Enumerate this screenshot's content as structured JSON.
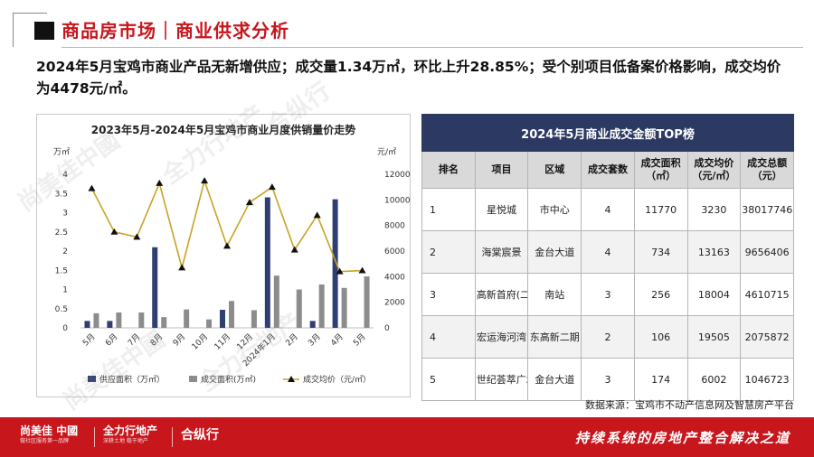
{
  "header": {
    "section_title": "商品房市场｜商业供求分析",
    "summary": "2024年5月宝鸡市商业产品无新增供应；成交量1.34万㎡，环比上升28.85%；受个别项目低备案价格影响，成交均价为4478元/㎡。"
  },
  "chart_data": {
    "type": "bar+line",
    "title": "2023年5月-2024年5月宝鸡市商业月度供销量价走势",
    "y_left_unit": "万㎡",
    "y_right_unit": "元/㎡",
    "categories": [
      "5月",
      "6月",
      "7月",
      "8月",
      "9月",
      "10月",
      "11月",
      "12月",
      "2024年1月",
      "2月",
      "3月",
      "4月",
      "5月"
    ],
    "y_left_lim": [
      0,
      4
    ],
    "y_left_ticks": [
      "0",
      "0.5",
      "1",
      "1.5",
      "2",
      "2.5",
      "3",
      "3.5",
      "4"
    ],
    "y_right_lim": [
      0,
      12000
    ],
    "y_right_ticks": [
      "0",
      "2000",
      "4000",
      "6000",
      "8000",
      "10000",
      "12000"
    ],
    "series": [
      {
        "name": "供应面积（万㎡）",
        "type": "bar",
        "color": "#2f3f73",
        "values": [
          0.18,
          0.18,
          0,
          2.1,
          0,
          0,
          0.47,
          0,
          3.4,
          0,
          0.18,
          3.35,
          0
        ]
      },
      {
        "name": "成交面积(万㎡)",
        "type": "bar",
        "color": "#8c8c8c",
        "values": [
          0.38,
          0.4,
          0.4,
          0.28,
          0.48,
          0.22,
          0.7,
          0.46,
          1.36,
          1.0,
          1.13,
          1.04,
          1.34
        ]
      },
      {
        "name": "成交均价（元/㎡）",
        "type": "line",
        "color": "#c9a227",
        "values": [
          10900,
          7500,
          7100,
          11300,
          4700,
          11500,
          6400,
          9800,
          11000,
          6100,
          8800,
          4400,
          4478
        ]
      }
    ],
    "legend_position": "bottom"
  },
  "table": {
    "title": "2024年5月商业成交金额TOP榜",
    "headers": [
      "排名",
      "项目",
      "区域",
      "成交套数",
      "成交面积（㎡）",
      "成交均价（元/㎡）",
      "成交总额（元）"
    ],
    "rows": [
      [
        "1",
        "星悦城",
        "市中心",
        "4",
        "11770",
        "3230",
        "38017746"
      ],
      [
        "2",
        "海棠宸景",
        "金台大道",
        "4",
        "734",
        "13163",
        "9656406"
      ],
      [
        "3",
        "高新首府(二期)",
        "南站",
        "3",
        "256",
        "18004",
        "4610715"
      ],
      [
        "4",
        "宏运海河湾",
        "东高新二期",
        "2",
        "106",
        "19505",
        "2075872"
      ],
      [
        "5",
        "世纪荟萃广场二期",
        "金台大道",
        "3",
        "174",
        "6002",
        "1046723"
      ]
    ]
  },
  "source": "数据来源：宝鸡市不动产信息网及智慧房产平台",
  "footer": {
    "logo1": "尚美佳 中國",
    "logo1_sub": "做社区服务第一品牌",
    "logo2": "全力行地产",
    "logo2_sub": "深耕土地 稳于地产",
    "logo3": "合纵行",
    "slogan": "持续系统的房地产整合解决之道"
  },
  "watermarks": [
    "尚美佳中國",
    "全力行地产",
    "合纵行"
  ],
  "colors": {
    "brand_red": "#c8161d",
    "table_header": "#2c3a63",
    "supply_bar": "#2f3f73",
    "sales_bar": "#8c8c8c",
    "price_line": "#c9a227"
  }
}
